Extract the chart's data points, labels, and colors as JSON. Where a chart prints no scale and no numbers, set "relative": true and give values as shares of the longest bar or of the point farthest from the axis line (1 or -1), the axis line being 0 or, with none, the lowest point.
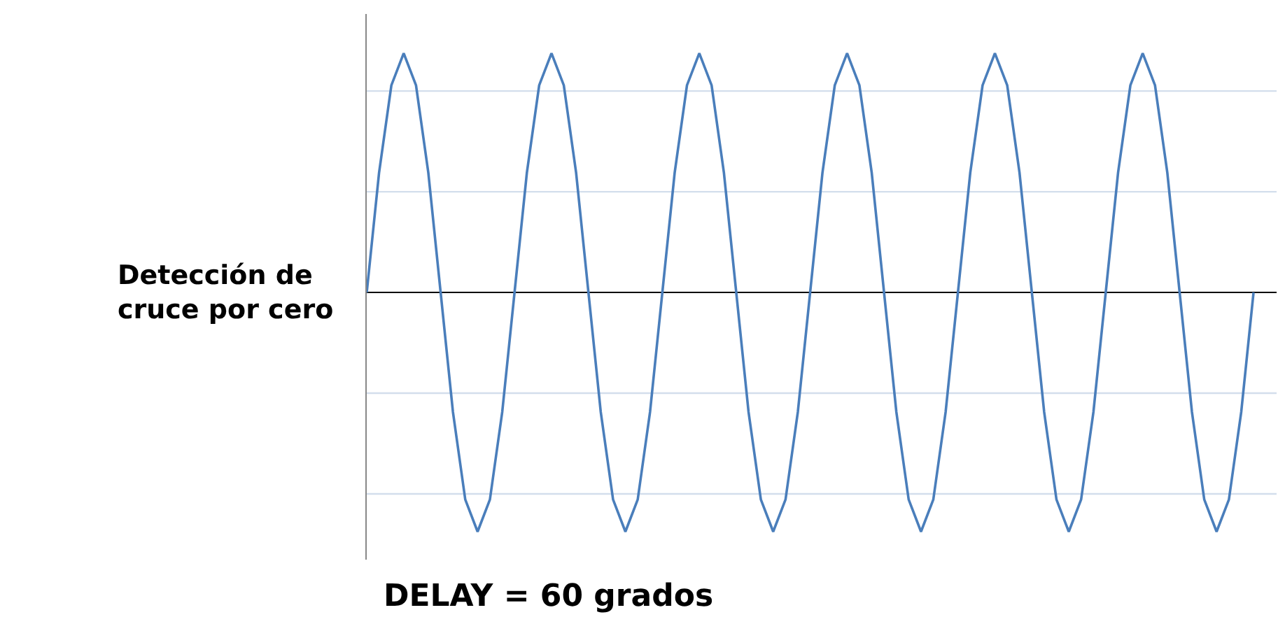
{
  "chart_data": {
    "type": "line",
    "relative": true,
    "categories": [
      null,
      null,
      null,
      null,
      null,
      null,
      null,
      null,
      null,
      null,
      null,
      null,
      null,
      null,
      null,
      null,
      null,
      null,
      null,
      null,
      null,
      null,
      null,
      null,
      null,
      null,
      null,
      null,
      null,
      null,
      null,
      null,
      null,
      null,
      null,
      null,
      null,
      null,
      null,
      null,
      null,
      null,
      null,
      null,
      null,
      null,
      null,
      null,
      null,
      null,
      null,
      null,
      null,
      null,
      null,
      null,
      null,
      null,
      null,
      null,
      null,
      null,
      null,
      null,
      null,
      null,
      null,
      null,
      null,
      null,
      null,
      null,
      null
    ],
    "series": [
      {
        "color": "#4a7ebb",
        "marker": "none",
        "line_style": "solid",
        "values": [
          0,
          0.5,
          0.866,
          1,
          0.866,
          0.5,
          0,
          -0.5,
          -0.866,
          -1,
          -0.866,
          -0.5,
          0,
          0.5,
          0.866,
          1,
          0.866,
          0.5,
          0,
          -0.5,
          -0.866,
          -1,
          -0.866,
          -0.5,
          0,
          0.5,
          0.866,
          1,
          0.866,
          0.5,
          0,
          -0.5,
          -0.866,
          -1,
          -0.866,
          -0.5,
          0,
          0.5,
          0.866,
          1,
          0.866,
          0.5,
          0,
          -0.5,
          -0.866,
          -1,
          -0.866,
          -0.5,
          0,
          0.5,
          0.866,
          1,
          0.866,
          0.5,
          0,
          -0.5,
          -0.866,
          -1,
          -0.866,
          -0.5,
          0,
          0.5,
          0.866,
          1,
          0.866,
          0.5,
          0,
          -0.5,
          -0.866,
          -1,
          -0.866,
          -0.5,
          0
        ]
      }
    ],
    "ref_lines": [
      {
        "axis": "y",
        "value": 0.842,
        "color": "#d3deec",
        "line_style": "solid"
      },
      {
        "axis": "y",
        "value": 0.421,
        "color": "#d3deec",
        "line_style": "solid"
      },
      {
        "axis": "y",
        "value": -0.421,
        "color": "#d3deec",
        "line_style": "solid"
      },
      {
        "axis": "y",
        "value": -0.842,
        "color": "#d3deec",
        "line_style": "solid"
      }
    ],
    "annotations": [
      "Detección de\ncruce por cero",
      "DELAY = 60 grados"
    ]
  }
}
